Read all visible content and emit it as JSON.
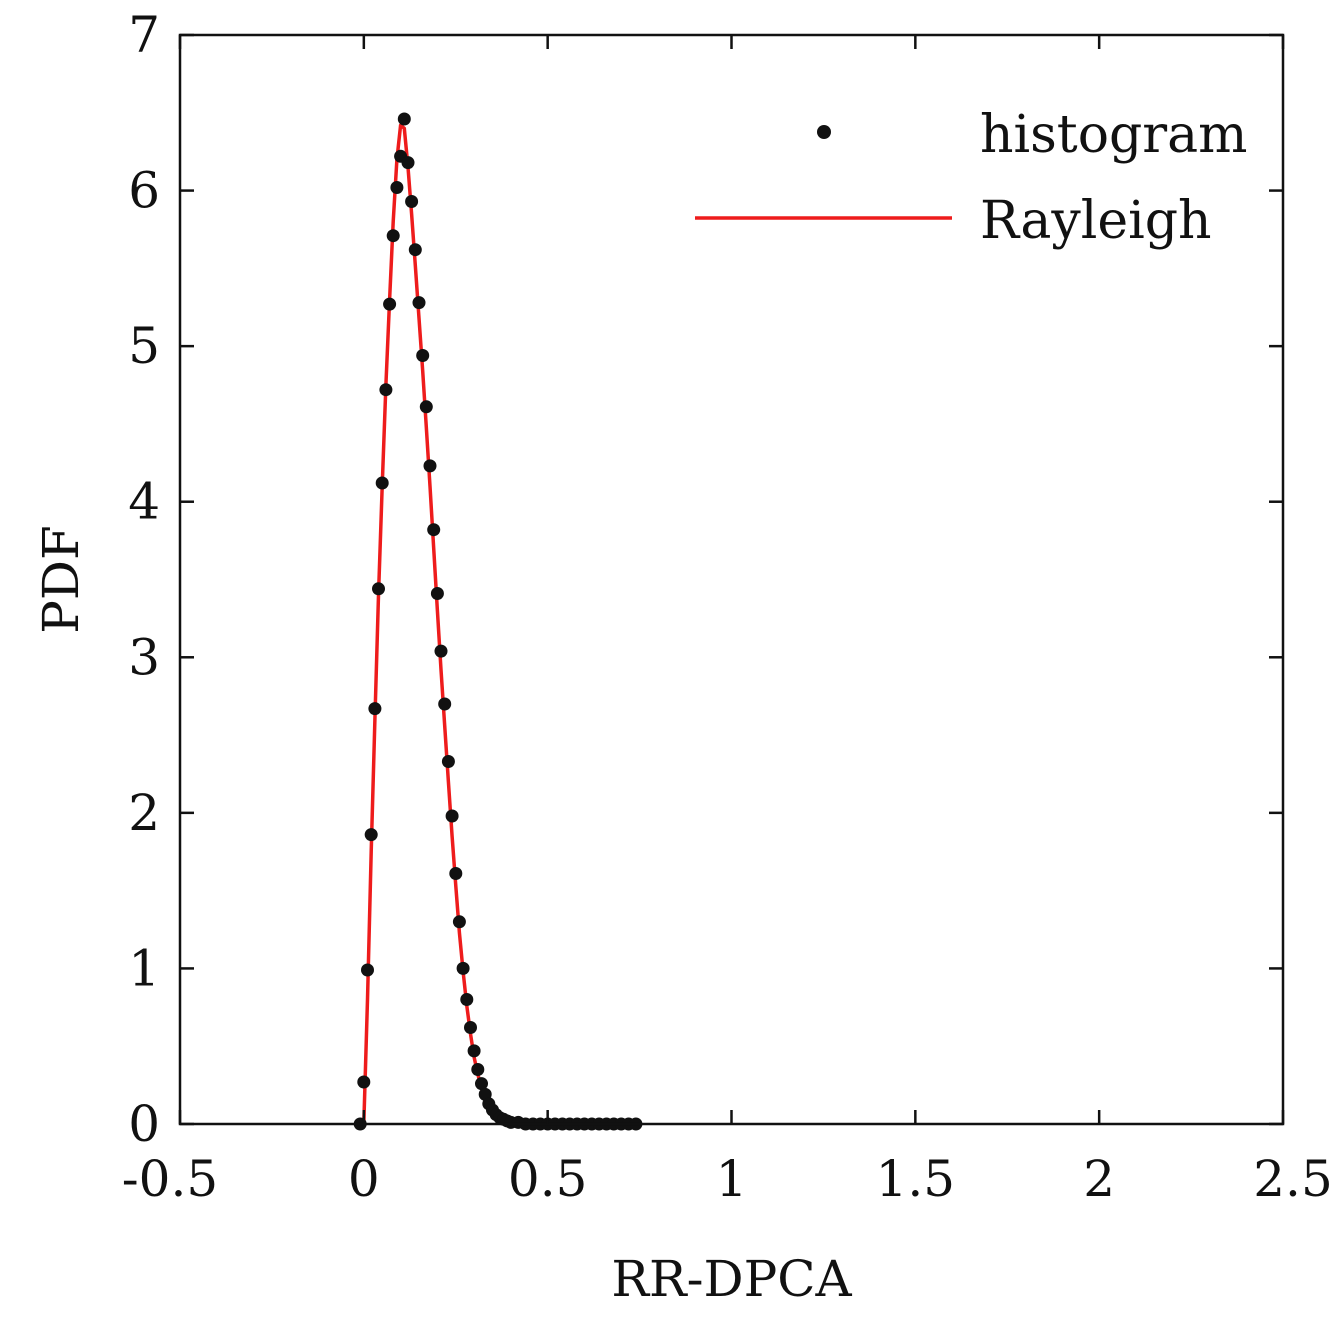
{
  "chart_data": {
    "type": "scatter",
    "title": "",
    "xlabel": "RR-DPCA",
    "ylabel": "PDF",
    "xlim": [
      -0.5,
      2.5
    ],
    "ylim": [
      0,
      7
    ],
    "xticks": [
      -0.5,
      0,
      0.5,
      1,
      1.5,
      2,
      2.5
    ],
    "xtick_labels": [
      "-0.5",
      "0",
      "0.5",
      "1",
      "1.5",
      "2",
      "2.5"
    ],
    "yticks": [
      0,
      1,
      2,
      3,
      4,
      5,
      6,
      7
    ],
    "ytick_labels": [
      "0",
      "1",
      "2",
      "3",
      "4",
      "5",
      "6",
      "7"
    ],
    "grid": false,
    "legend_position": "top-right",
    "colors": {
      "histogram": "#111111",
      "rayleigh": "#ee1c1c",
      "axes": "#111111"
    },
    "series": [
      {
        "name": "histogram",
        "style": "markers",
        "x": [
          -0.01,
          0.0,
          0.01,
          0.02,
          0.03,
          0.04,
          0.05,
          0.06,
          0.07,
          0.08,
          0.09,
          0.1,
          0.11,
          0.12,
          0.13,
          0.14,
          0.15,
          0.16,
          0.17,
          0.18,
          0.19,
          0.2,
          0.21,
          0.22,
          0.23,
          0.24,
          0.25,
          0.26,
          0.27,
          0.28,
          0.29,
          0.3,
          0.31,
          0.32,
          0.33,
          0.34,
          0.35,
          0.36,
          0.37,
          0.38,
          0.39,
          0.4,
          0.42,
          0.44,
          0.46,
          0.48,
          0.5,
          0.52,
          0.54,
          0.56,
          0.58,
          0.6,
          0.62,
          0.64,
          0.66,
          0.68,
          0.7,
          0.72,
          0.74
        ],
        "y": [
          0.0,
          0.27,
          0.99,
          1.86,
          2.67,
          3.44,
          4.12,
          4.72,
          5.27,
          5.71,
          6.02,
          6.22,
          6.46,
          6.18,
          5.93,
          5.62,
          5.28,
          4.94,
          4.61,
          4.23,
          3.82,
          3.41,
          3.04,
          2.7,
          2.33,
          1.98,
          1.61,
          1.3,
          1.0,
          0.8,
          0.62,
          0.47,
          0.35,
          0.26,
          0.19,
          0.13,
          0.09,
          0.06,
          0.04,
          0.03,
          0.02,
          0.01,
          0.01,
          0.0,
          0.0,
          0.0,
          0.0,
          0.0,
          0.0,
          0.0,
          0.0,
          0.0,
          0.0,
          0.0,
          0.0,
          0.0,
          0.0,
          0.0,
          0.0
        ]
      },
      {
        "name": "Rayleigh",
        "style": "line",
        "x": [
          0.0,
          0.01,
          0.02,
          0.03,
          0.04,
          0.05,
          0.06,
          0.07,
          0.08,
          0.09,
          0.1,
          0.11,
          0.12,
          0.13,
          0.14,
          0.15,
          0.16,
          0.17,
          0.18,
          0.19,
          0.2,
          0.21,
          0.22,
          0.23,
          0.24,
          0.25,
          0.26,
          0.27,
          0.28,
          0.29,
          0.3,
          0.31,
          0.32,
          0.33,
          0.34,
          0.35,
          0.36,
          0.37,
          0.38,
          0.39,
          0.4,
          0.42,
          0.44,
          0.46,
          0.48,
          0.5,
          0.55,
          0.6,
          0.65,
          0.7,
          0.74
        ],
        "y": [
          0.0,
          0.8,
          1.75,
          2.6,
          3.4,
          4.1,
          4.75,
          5.3,
          5.8,
          6.2,
          6.42,
          6.4,
          6.15,
          5.85,
          5.52,
          5.18,
          4.84,
          4.48,
          4.1,
          3.7,
          3.3,
          2.92,
          2.56,
          2.2,
          1.85,
          1.53,
          1.23,
          0.98,
          0.76,
          0.58,
          0.43,
          0.32,
          0.23,
          0.16,
          0.11,
          0.08,
          0.05,
          0.035,
          0.02,
          0.015,
          0.01,
          0.005,
          0.0,
          0.0,
          0.0,
          0.0,
          0.0,
          0.0,
          0.0,
          0.0,
          0.0
        ]
      }
    ]
  }
}
